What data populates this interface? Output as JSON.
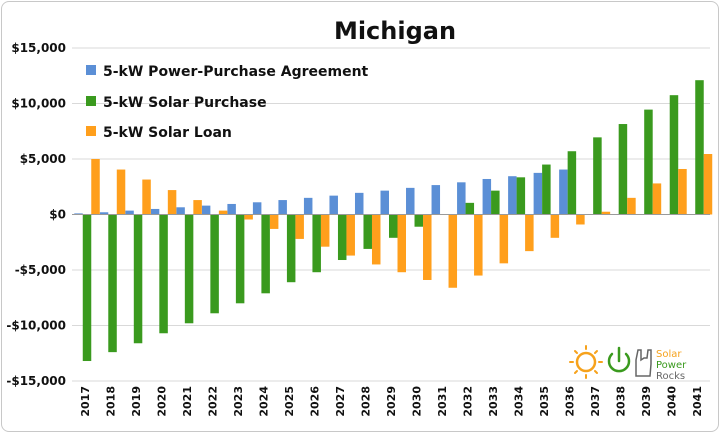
{
  "chart_data": {
    "type": "bar",
    "title": "Michigan",
    "xlabel": "",
    "ylabel": "",
    "ylim": [
      -15000,
      15000
    ],
    "yticks": [
      {
        "value": 15000,
        "label": "$15,000"
      },
      {
        "value": 10000,
        "label": "$10,000"
      },
      {
        "value": 5000,
        "label": "$5,000"
      },
      {
        "value": 0,
        "label": "$0"
      },
      {
        "value": -5000,
        "label": "-$5,000"
      },
      {
        "value": -10000,
        "label": "-$10,000"
      },
      {
        "value": -15000,
        "label": "-$15,000"
      }
    ],
    "grid": true,
    "legend_position": "top-left",
    "categories": [
      "2017",
      "2018",
      "2019",
      "2020",
      "2021",
      "2022",
      "2023",
      "2024",
      "2025",
      "2026",
      "2027",
      "2028",
      "2029",
      "2030",
      "2031",
      "2032",
      "2033",
      "2034",
      "2035",
      "2036",
      "2037",
      "2038",
      "2039",
      "2040",
      "2041"
    ],
    "series": [
      {
        "name": "5-kW Power-Purchase Agreement",
        "color": "#5b8fd6",
        "values": [
          100,
          200,
          350,
          500,
          650,
          800,
          950,
          1100,
          1300,
          1500,
          1700,
          1950,
          2150,
          2400,
          2650,
          2900,
          3200,
          3450,
          3750,
          4050,
          0,
          0,
          0,
          0,
          0
        ]
      },
      {
        "name": "5-kW Solar Purchase",
        "color": "#3a9a1e",
        "values": [
          -13200,
          -12400,
          -11600,
          -10700,
          -9800,
          -8900,
          -8000,
          -7100,
          -6100,
          -5200,
          -4100,
          -3100,
          -2100,
          -1100,
          0,
          1050,
          2150,
          3350,
          4500,
          5700,
          6950,
          8150,
          9450,
          10750,
          12100
        ]
      },
      {
        "name": "5-kW Solar Loan",
        "color": "#ff9f1c",
        "values": [
          5000,
          4050,
          3150,
          2200,
          1300,
          350,
          -450,
          -1300,
          -2200,
          -2900,
          -3700,
          -4500,
          -5200,
          -5900,
          -6600,
          -5500,
          -4400,
          -3300,
          -2100,
          -900,
          250,
          1500,
          2800,
          4100,
          5450
        ]
      }
    ]
  },
  "logo": {
    "line1": "Solar",
    "line2": "Power",
    "line3": "Rocks",
    "sun_color": "#f6a21c",
    "power_color": "#3a9a1e",
    "hand_color": "#666666"
  }
}
